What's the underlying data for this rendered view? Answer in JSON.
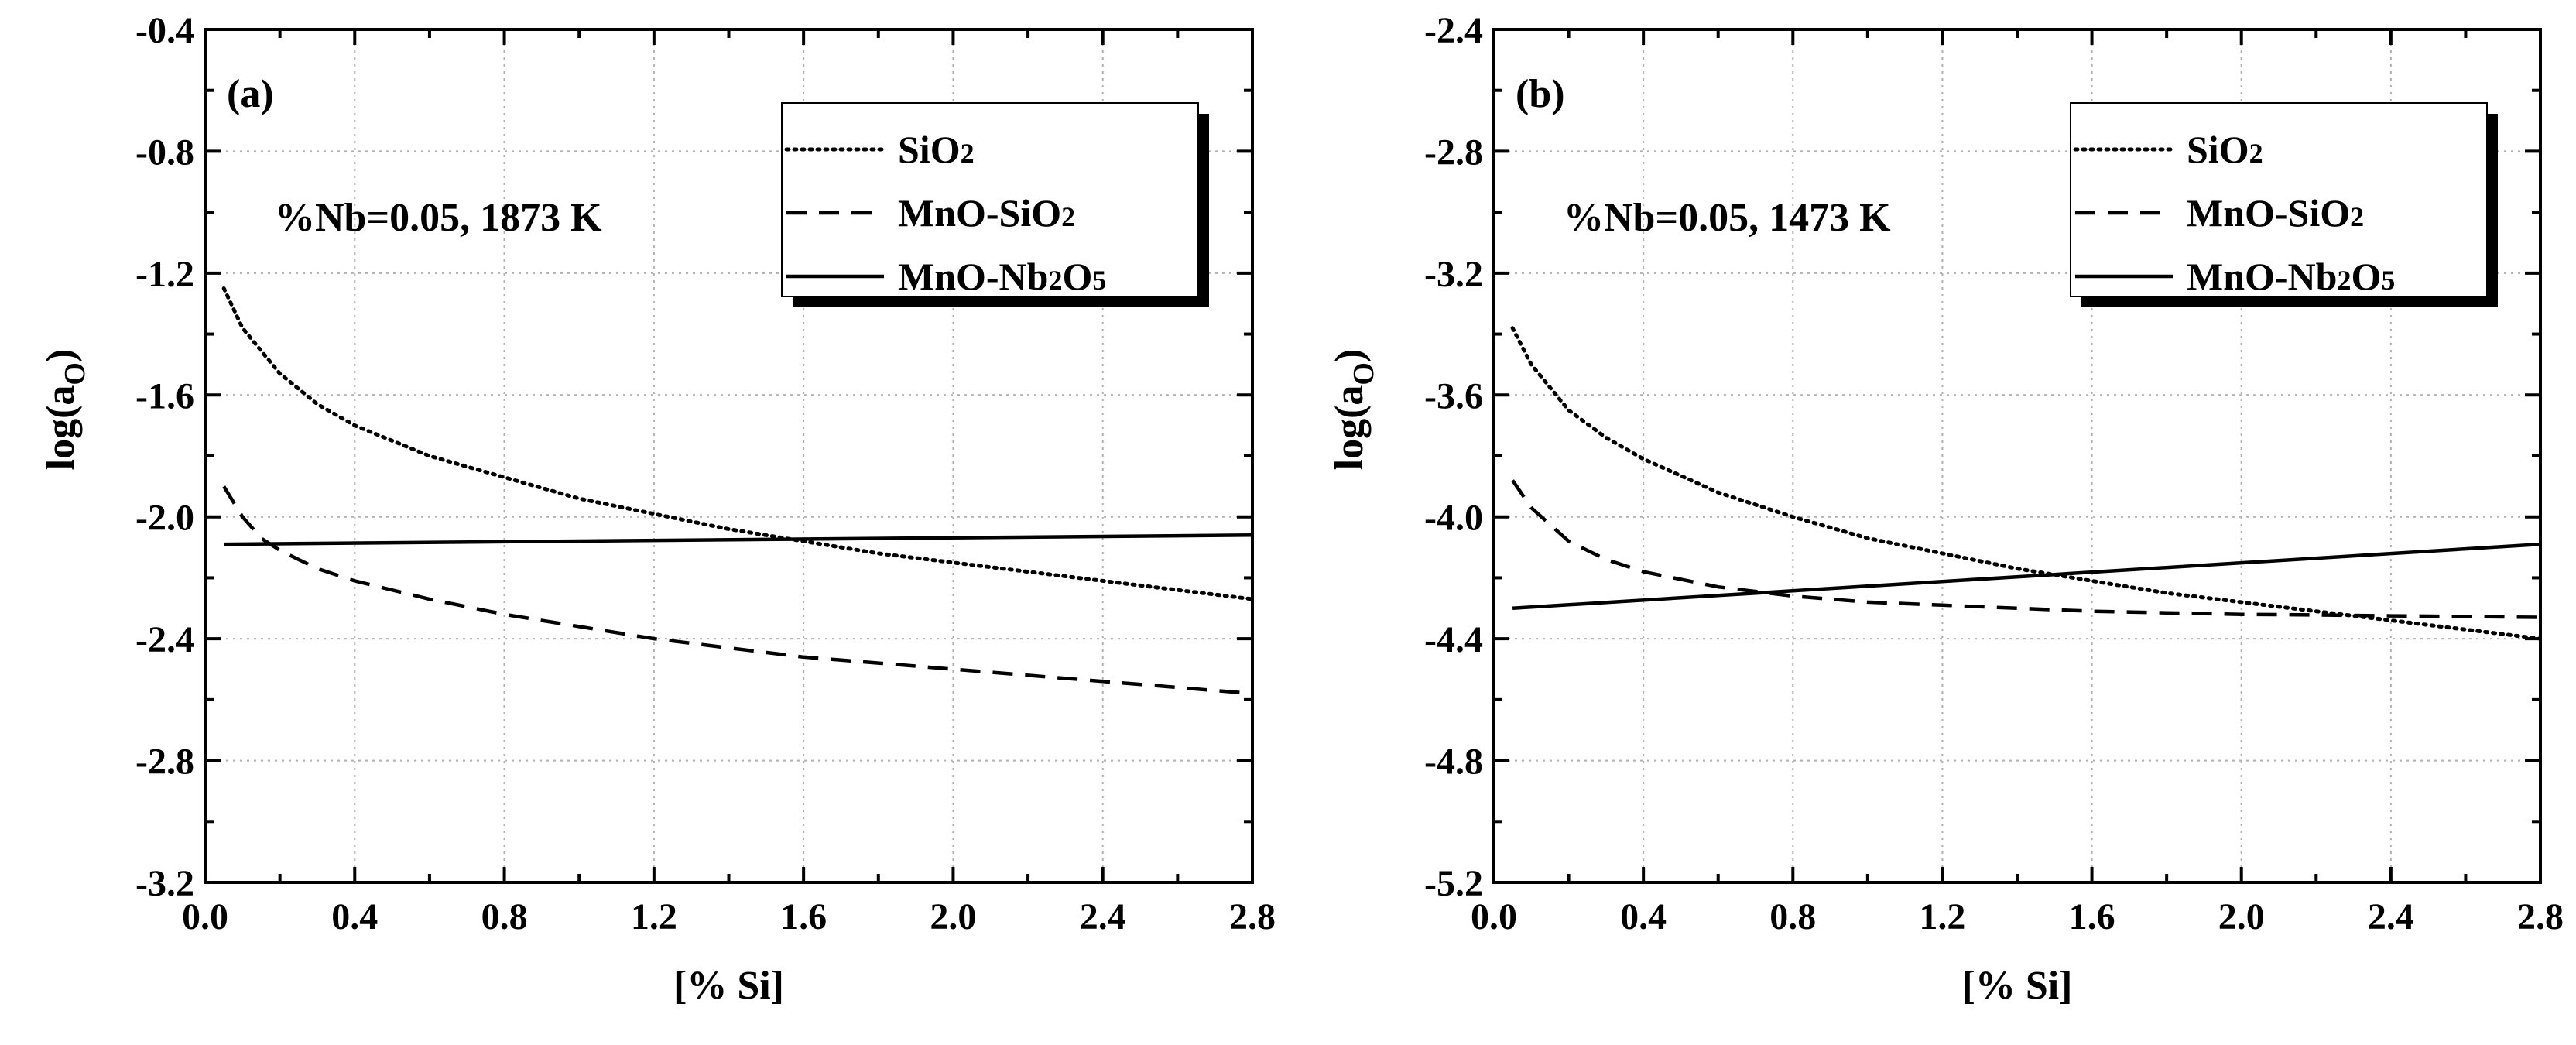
{
  "chart_data": [
    {
      "type": "line",
      "panel_label": "(a)",
      "annotation": "%Nb=0.05, 1873 K",
      "xlabel": "[% Si]",
      "ylabel": {
        "base": "log(a",
        "sub": "O",
        "close": ")"
      },
      "xlim": [
        0.0,
        2.8
      ],
      "ylim": [
        -3.2,
        -0.4
      ],
      "xticks": [
        0.0,
        0.4,
        0.8,
        1.2,
        1.6,
        2.0,
        2.4,
        2.8
      ],
      "xtick_labels": [
        "0.0",
        "0.4",
        "0.8",
        "1.2",
        "1.6",
        "2.0",
        "2.4",
        "2.8"
      ],
      "yticks": [
        -3.2,
        -2.8,
        -2.4,
        -2.0,
        -1.6,
        -1.2,
        -0.8,
        -0.4
      ],
      "ytick_labels": [
        "-3.2",
        "-2.8",
        "-2.4",
        "-2.0",
        "-1.6",
        "-1.2",
        "-0.8",
        "-0.4"
      ],
      "grid": true,
      "legend_position": "top-right",
      "series": [
        {
          "name": "SiO2",
          "legend_label": {
            "parts": [
              "SiO",
              "2",
              ""
            ]
          },
          "style": "dotted",
          "x": [
            0.05,
            0.1,
            0.2,
            0.3,
            0.4,
            0.6,
            0.8,
            1.0,
            1.2,
            1.4,
            1.6,
            1.8,
            2.0,
            2.2,
            2.4,
            2.6,
            2.8
          ],
          "y": [
            -1.25,
            -1.38,
            -1.53,
            -1.63,
            -1.7,
            -1.8,
            -1.87,
            -1.94,
            -1.99,
            -2.04,
            -2.08,
            -2.12,
            -2.15,
            -2.18,
            -2.21,
            -2.24,
            -2.27
          ]
        },
        {
          "name": "MnO-SiO2",
          "legend_label": {
            "parts": [
              "MnO-SiO",
              "2",
              ""
            ]
          },
          "style": "dashed",
          "x": [
            0.05,
            0.1,
            0.15,
            0.2,
            0.3,
            0.4,
            0.6,
            0.8,
            1.0,
            1.2,
            1.4,
            1.6,
            1.8,
            2.0,
            2.2,
            2.4,
            2.6,
            2.8
          ],
          "y": [
            -1.9,
            -2.0,
            -2.07,
            -2.11,
            -2.17,
            -2.21,
            -2.27,
            -2.32,
            -2.36,
            -2.4,
            -2.43,
            -2.46,
            -2.48,
            -2.5,
            -2.52,
            -2.54,
            -2.56,
            -2.58
          ]
        },
        {
          "name": "MnO-Nb2O5",
          "legend_label": {
            "parts": [
              "MnO-Nb",
              "2",
              "O",
              "5"
            ]
          },
          "style": "solid",
          "x": [
            0.05,
            2.8
          ],
          "y": [
            -2.09,
            -2.06
          ]
        }
      ]
    },
    {
      "type": "line",
      "panel_label": "(b)",
      "annotation": "%Nb=0.05, 1473 K",
      "xlabel": "[% Si]",
      "ylabel": {
        "base": "log(a",
        "sub": "O",
        "close": ")"
      },
      "xlim": [
        0.0,
        2.8
      ],
      "ylim": [
        -5.2,
        -2.4
      ],
      "xticks": [
        0.0,
        0.4,
        0.8,
        1.2,
        1.6,
        2.0,
        2.4,
        2.8
      ],
      "xtick_labels": [
        "0.0",
        "0.4",
        "0.8",
        "1.2",
        "1.6",
        "2.0",
        "2.4",
        "2.8"
      ],
      "yticks": [
        -5.2,
        -4.8,
        -4.4,
        -4.0,
        -3.6,
        -3.2,
        -2.8,
        -2.4
      ],
      "ytick_labels": [
        "-5.2",
        "-4.8",
        "-4.4",
        "-4.0",
        "-3.6",
        "-3.2",
        "-2.8",
        "-2.4"
      ],
      "grid": true,
      "legend_position": "top-right",
      "series": [
        {
          "name": "SiO2",
          "legend_label": {
            "parts": [
              "SiO",
              "2",
              ""
            ]
          },
          "style": "dotted",
          "x": [
            0.05,
            0.1,
            0.2,
            0.3,
            0.4,
            0.6,
            0.8,
            1.0,
            1.2,
            1.4,
            1.6,
            1.8,
            2.0,
            2.2,
            2.4,
            2.6,
            2.8
          ],
          "y": [
            -3.38,
            -3.5,
            -3.65,
            -3.74,
            -3.81,
            -3.92,
            -4.0,
            -4.07,
            -4.12,
            -4.17,
            -4.21,
            -4.25,
            -4.28,
            -4.31,
            -4.34,
            -4.37,
            -4.4
          ]
        },
        {
          "name": "MnO-SiO2",
          "legend_label": {
            "parts": [
              "MnO-SiO",
              "2",
              ""
            ]
          },
          "style": "dashed",
          "x": [
            0.05,
            0.1,
            0.2,
            0.3,
            0.4,
            0.6,
            0.8,
            1.0,
            1.2,
            1.4,
            1.6,
            1.8,
            2.0,
            2.2,
            2.4,
            2.6,
            2.8
          ],
          "y": [
            -3.88,
            -3.97,
            -4.08,
            -4.14,
            -4.18,
            -4.23,
            -4.26,
            -4.28,
            -4.29,
            -4.3,
            -4.31,
            -4.315,
            -4.32,
            -4.322,
            -4.325,
            -4.327,
            -4.33
          ]
        },
        {
          "name": "MnO-Nb2O5",
          "legend_label": {
            "parts": [
              "MnO-Nb",
              "2",
              "O",
              "5"
            ]
          },
          "style": "solid",
          "x": [
            0.05,
            2.8
          ],
          "y": [
            -4.3,
            -4.09
          ]
        }
      ]
    }
  ]
}
